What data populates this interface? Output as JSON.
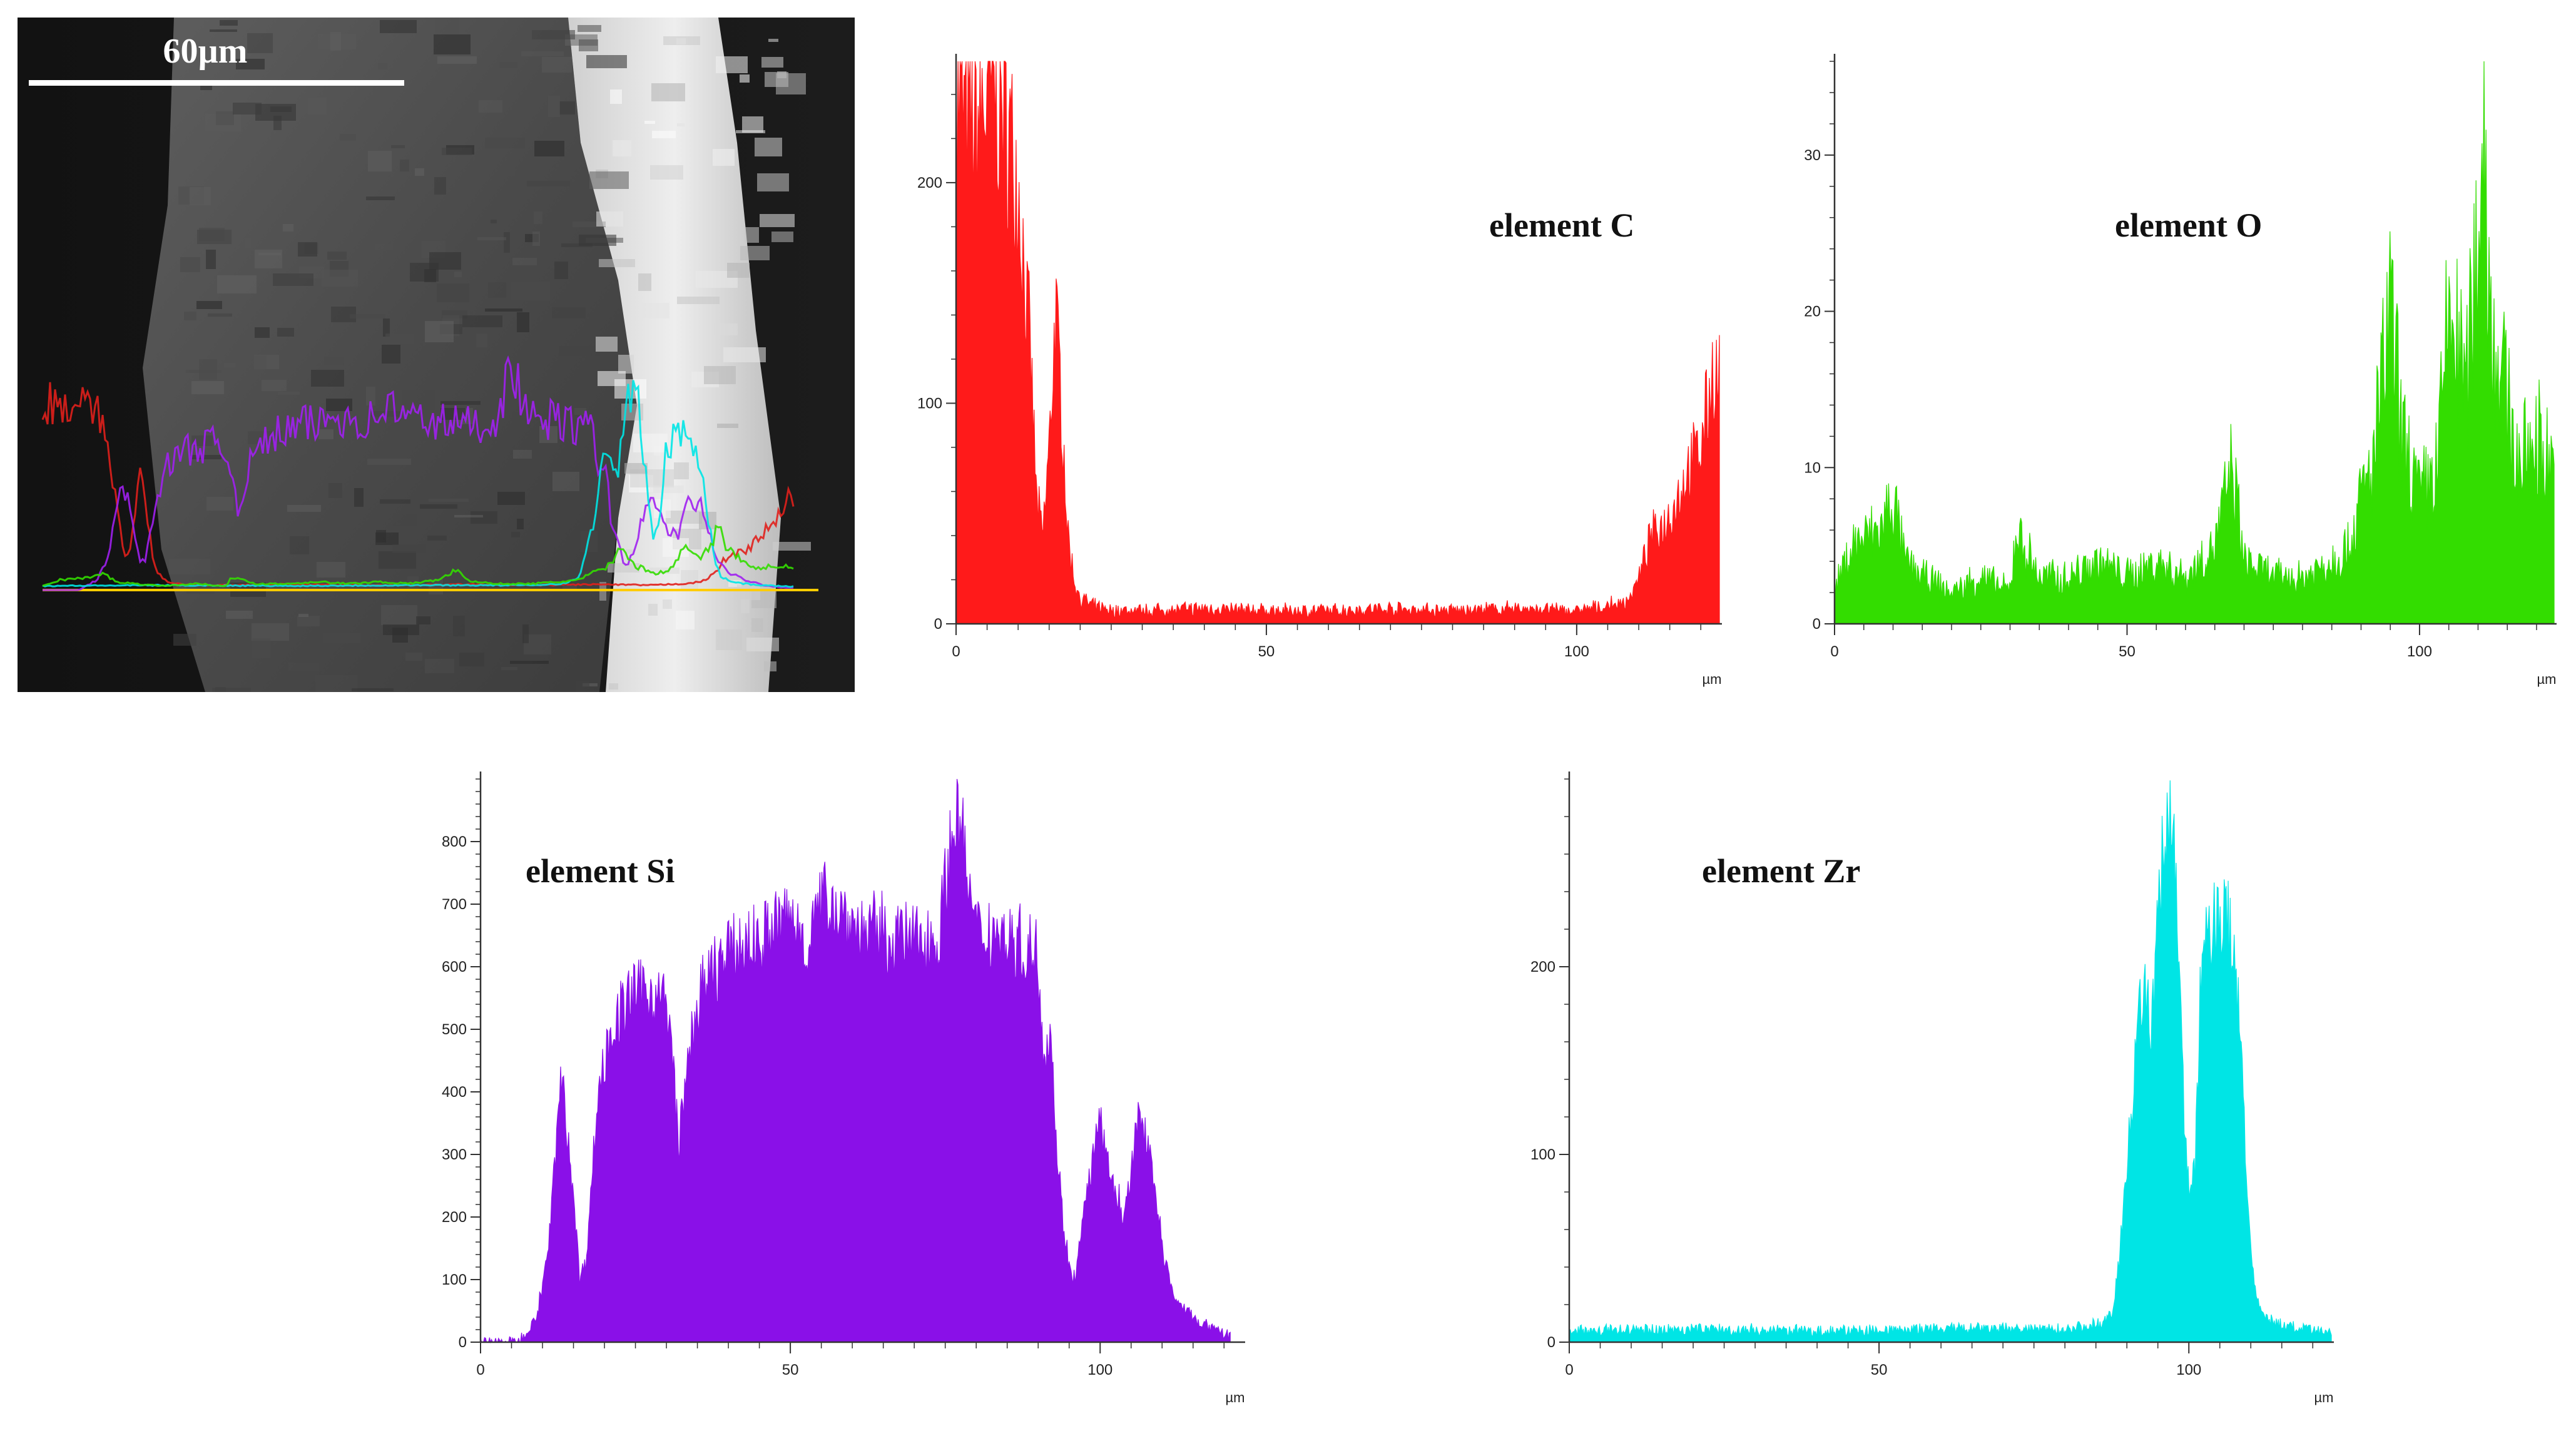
{
  "sem": {
    "scale_label": "60µm",
    "line_colors": [
      "#e0201c",
      "#a020f0",
      "#00e5e5",
      "#33dd00",
      "#ffcc00"
    ]
  },
  "chart_data": [
    {
      "type": "area",
      "label": "element C",
      "color": "#ff1a1a",
      "xlabel": "µm",
      "xlim": [
        0,
        123
      ],
      "ylim": [
        0,
        255
      ],
      "xticks": [
        0,
        50,
        100
      ],
      "yticks": [
        0,
        100,
        200
      ],
      "x": [
        0,
        3,
        6,
        8,
        10,
        12,
        13,
        14,
        15,
        16,
        17,
        18,
        19,
        20,
        22,
        25,
        30,
        40,
        50,
        60,
        70,
        80,
        90,
        100,
        105,
        108,
        110,
        112,
        114,
        116,
        118,
        120,
        122,
        123
      ],
      "y": [
        235,
        225,
        245,
        230,
        200,
        120,
        55,
        40,
        80,
        140,
        100,
        40,
        20,
        12,
        8,
        6,
        6,
        7,
        6,
        6,
        7,
        6,
        7,
        6,
        8,
        10,
        20,
        40,
        45,
        55,
        70,
        80,
        115,
        110
      ]
    },
    {
      "type": "area",
      "label": "element O",
      "color": "#33dd00",
      "xlabel": "µm",
      "xlim": [
        0,
        123
      ],
      "ylim": [
        0,
        36
      ],
      "xticks": [
        0,
        50,
        100
      ],
      "yticks": [
        0,
        10,
        20,
        30
      ],
      "x": [
        0,
        3,
        8,
        10,
        12,
        15,
        20,
        25,
        30,
        31,
        35,
        40,
        45,
        50,
        55,
        60,
        65,
        68,
        70,
        75,
        80,
        85,
        88,
        90,
        92,
        95,
        97,
        100,
        103,
        105,
        108,
        110,
        111,
        112,
        113,
        115,
        117,
        120,
        123
      ],
      "y": [
        2,
        5,
        6,
        8,
        4,
        3,
        2,
        3,
        2,
        6,
        3,
        3,
        4,
        3,
        4,
        3,
        5,
        10,
        4,
        3,
        3,
        4,
        5,
        8,
        10,
        20,
        12,
        8,
        10,
        20,
        15,
        25,
        34,
        20,
        18,
        14,
        10,
        12,
        10
      ]
    },
    {
      "type": "area",
      "label": "element Si",
      "color": "#8a10e8",
      "xlabel": "µm",
      "xlim": [
        0,
        123
      ],
      "ylim": [
        0,
        900
      ],
      "xticks": [
        0,
        50,
        100
      ],
      "yticks": [
        0,
        100,
        200,
        300,
        400,
        500,
        600,
        700,
        800
      ],
      "x": [
        0,
        6,
        9,
        11,
        13,
        15,
        16,
        17,
        19,
        21,
        25,
        28,
        30,
        31,
        32,
        33,
        34,
        35,
        38,
        42,
        46,
        50,
        53,
        56,
        58,
        61,
        65,
        70,
        74,
        76,
        77,
        78,
        80,
        83,
        86,
        90,
        91,
        92,
        93,
        94,
        95,
        96,
        98,
        100,
        102,
        104,
        106,
        108,
        110,
        112,
        115,
        118,
        121
      ],
      "y": [
        0,
        0,
        40,
        150,
        430,
        240,
        100,
        130,
        400,
        500,
        560,
        560,
        540,
        450,
        320,
        400,
        480,
        540,
        600,
        630,
        650,
        680,
        640,
        720,
        690,
        660,
        650,
        640,
        650,
        800,
        870,
        780,
        650,
        660,
        640,
        620,
        450,
        520,
        300,
        200,
        120,
        100,
        250,
        350,
        250,
        200,
        350,
        320,
        150,
        70,
        40,
        20,
        10
      ]
    },
    {
      "type": "area",
      "label": "element Zr",
      "color": "#00e5e5",
      "xlabel": "µm",
      "xlim": [
        0,
        123
      ],
      "ylim": [
        0,
        300
      ],
      "xticks": [
        0,
        50,
        100
      ],
      "yticks": [
        0,
        100,
        200
      ],
      "x": [
        0,
        20,
        40,
        60,
        80,
        86,
        88,
        90,
        92,
        94,
        96,
        97,
        98,
        99,
        100,
        101,
        102,
        104,
        106,
        108,
        109,
        110,
        111,
        113,
        116,
        120,
        123
      ],
      "y": [
        6,
        7,
        6,
        7,
        7,
        10,
        20,
        90,
        190,
        170,
        270,
        290,
        250,
        140,
        80,
        90,
        200,
        225,
        225,
        190,
        110,
        50,
        20,
        12,
        8,
        6,
        5
      ]
    }
  ]
}
